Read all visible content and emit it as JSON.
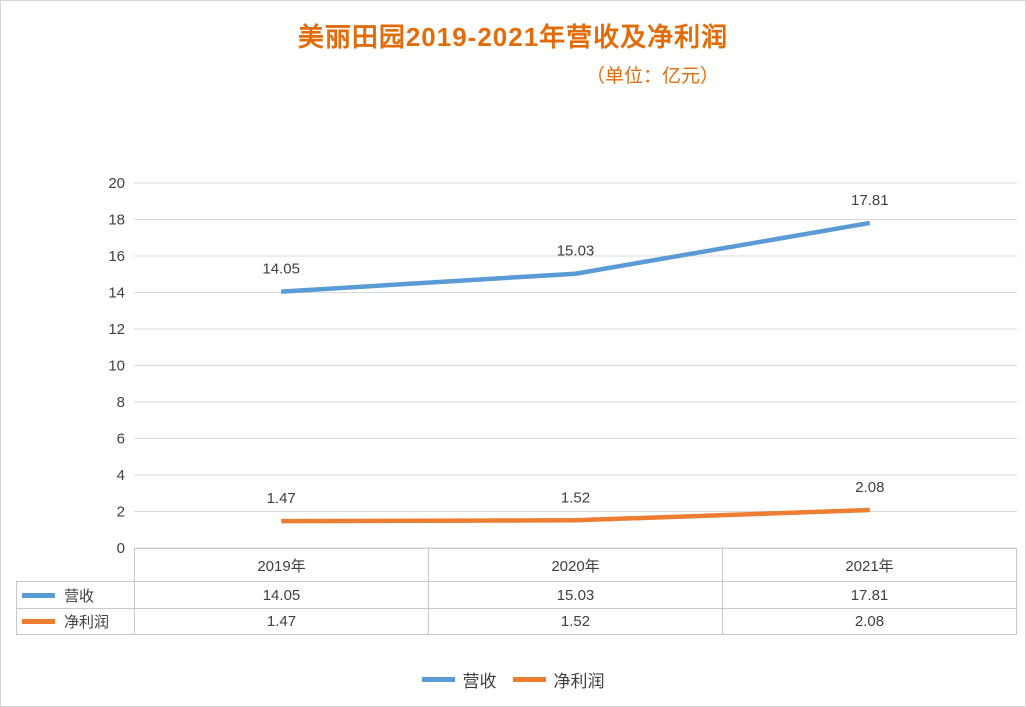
{
  "title": "美丽田园2019-2021年营收及净利润",
  "subtitle": "（单位：亿元）",
  "colors": {
    "title": "#e36c0a",
    "subtitle": "#e36c0a",
    "grid": "#d9d9d9",
    "axis_text": "#404040",
    "table_border": "#c9c9c9",
    "revenue_line": "#5b9bd5",
    "profit_line": "#ed7d31"
  },
  "chart_data": {
    "type": "line",
    "title": "美丽田园2019-2021年营收及净利润",
    "subtitle": "（单位：亿元）",
    "categories": [
      "2019年",
      "2020年",
      "2021年"
    ],
    "series": [
      {
        "name": "营收",
        "color": "#5b9bd5",
        "values": [
          14.05,
          15.03,
          17.81
        ]
      },
      {
        "name": "净利润",
        "color": "#ed7d31",
        "values": [
          1.47,
          1.52,
          2.08
        ]
      }
    ],
    "ylim": [
      0,
      20
    ],
    "yticks": [
      0,
      2,
      4,
      6,
      8,
      10,
      12,
      14,
      16,
      18,
      20
    ],
    "grid": true,
    "legend_position": "bottom",
    "data_table_shown": true
  },
  "legend": {
    "items": [
      "营收",
      "净利润"
    ]
  }
}
